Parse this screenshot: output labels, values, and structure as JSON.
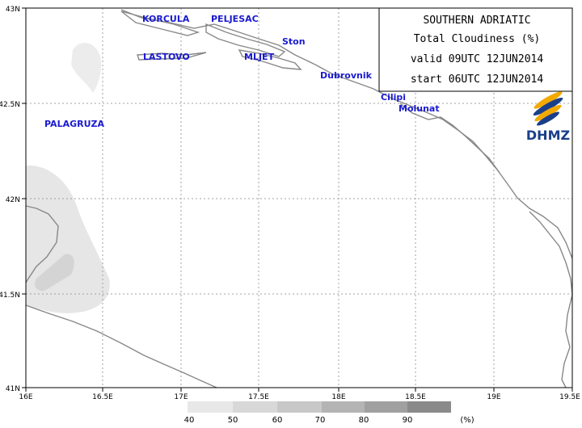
{
  "title_box": {
    "line1": "SOUTHERN ADRIATIC",
    "line2": "Total Cloudiness (%)",
    "line3": "valid 09UTC 12JUN2014",
    "line4": "start 06UTC 12JUN2014"
  },
  "logo": {
    "text": "DHMZ"
  },
  "axes": {
    "lat_ticks": [
      "43N",
      "42.5N",
      "42N",
      "41.5N",
      "41N"
    ],
    "lon_ticks": [
      "16E",
      "16.5E",
      "17E",
      "17.5E",
      "18E",
      "18.5E",
      "19E",
      "19.5E"
    ]
  },
  "places": {
    "korcula": "KORCULA",
    "peljesac": "PELJESAC",
    "ston": "Ston",
    "lastovo": "LASTOVO",
    "mljet": "MLJET",
    "dubrovnik": "Dubrovnik",
    "cilipi": "Cilipi",
    "molunat": "Molunat",
    "palagruza": "PALAGRUZA"
  },
  "colorbar": {
    "labels": [
      "40",
      "50",
      "60",
      "70",
      "80",
      "90",
      "(%)"
    ],
    "colors": [
      "#e8e8e8",
      "#d8d8d8",
      "#c8c8c8",
      "#b4b4b4",
      "#a0a0a0",
      "#8a8a8a",
      "#707070"
    ]
  },
  "colors": {
    "coast": "#888888",
    "grid": "#a0a0a0",
    "label": "#1a1ad0"
  }
}
